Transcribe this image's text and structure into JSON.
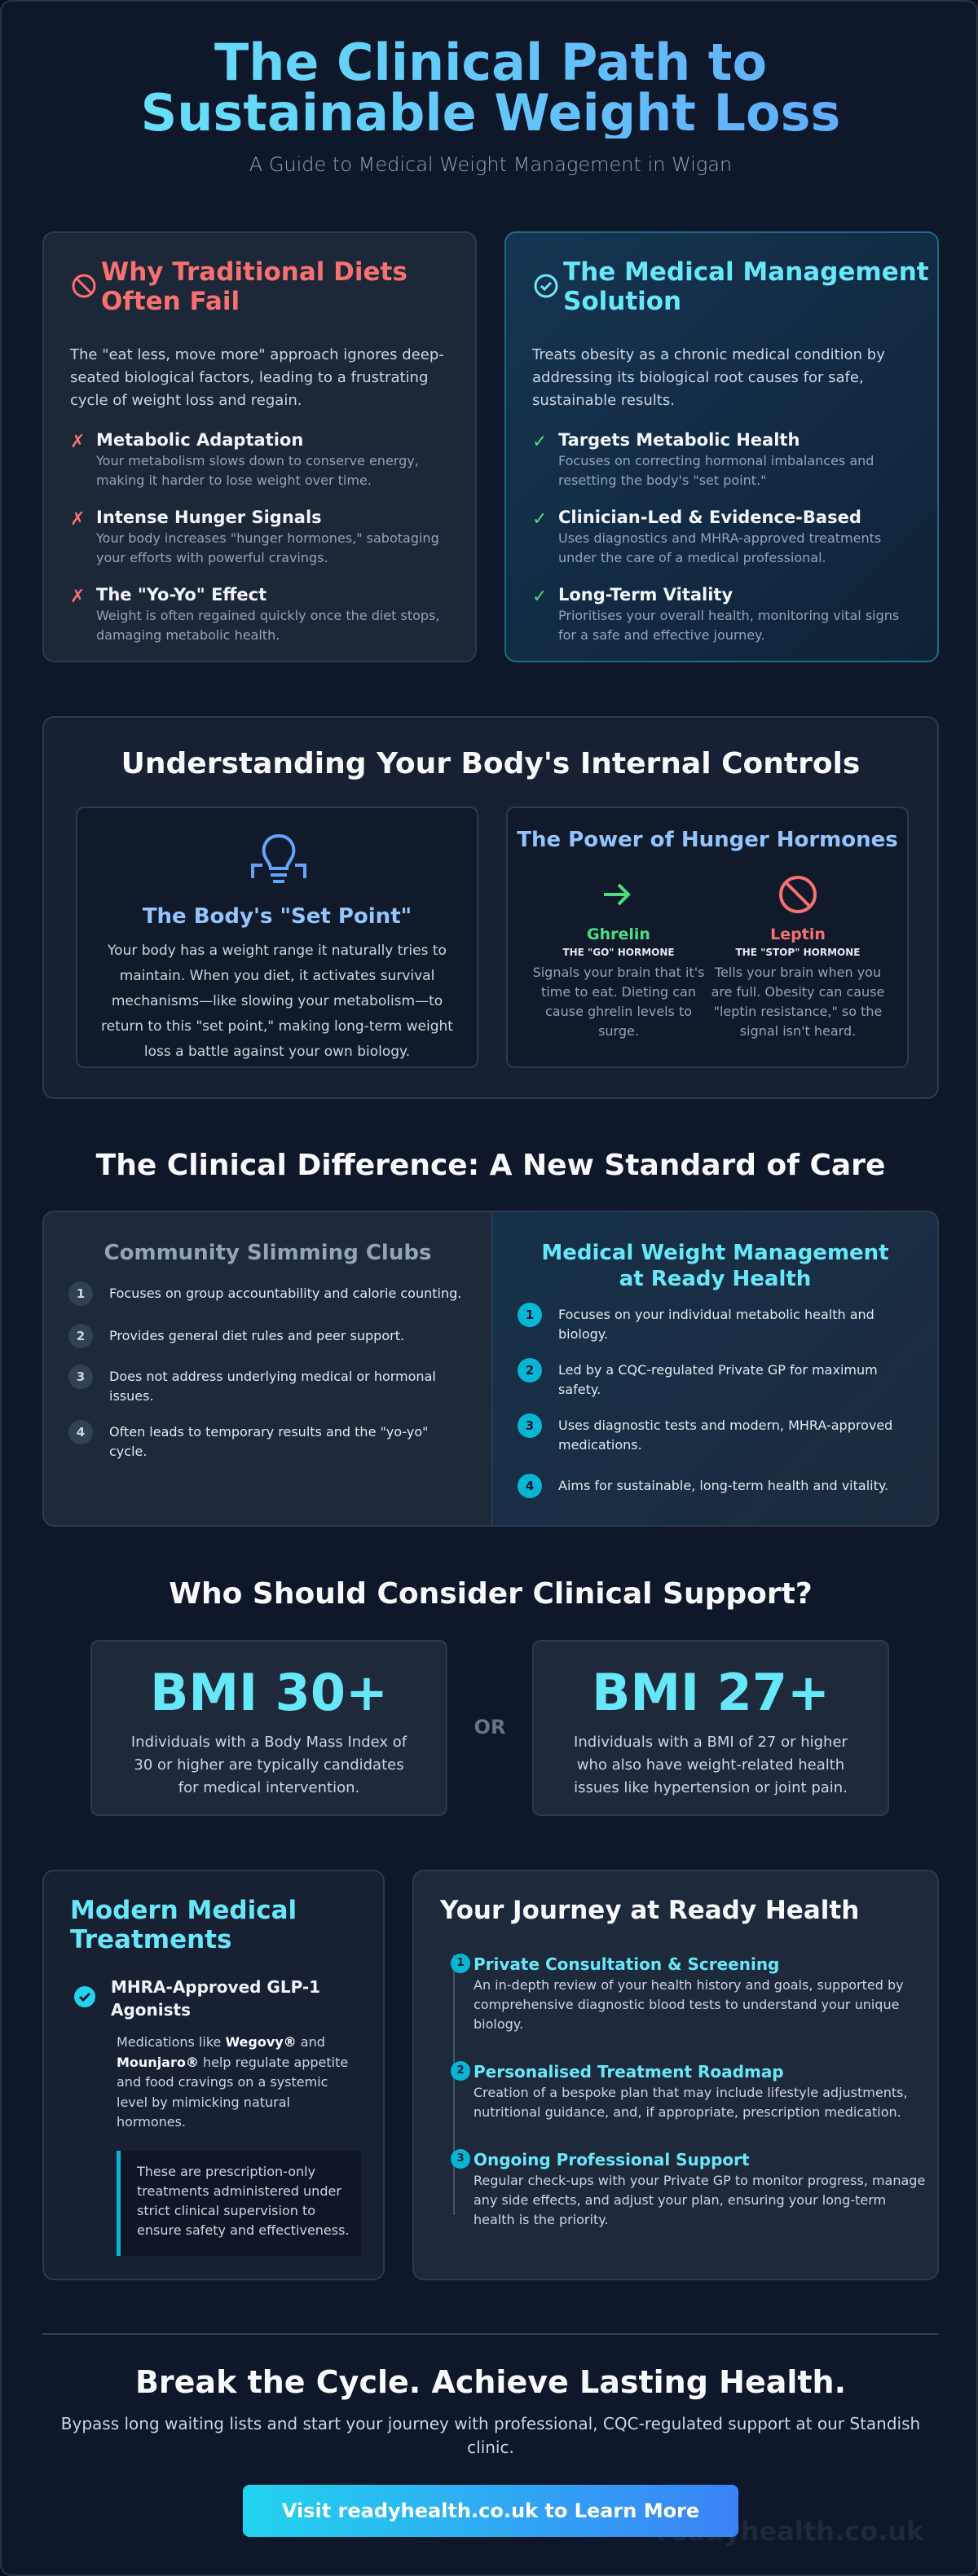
{
  "header": {
    "title": "The Clinical Path to Sustainable Weight Loss",
    "subtitle": "A Guide to Medical Weight Management in Wigan"
  },
  "problem": {
    "title": "Why Traditional Diets Often Fail",
    "intro": "The \"eat less, move more\" approach ignores deep-seated biological factors, leading to a frustrating cycle of weight loss and regain.",
    "items": [
      {
        "title": "Metabolic Adaptation",
        "text": "Your metabolism slows down to conserve energy, making it harder to lose weight over time."
      },
      {
        "title": "Intense Hunger Signals",
        "text": "Your body increases \"hunger hormones,\" sabotaging your efforts with powerful cravings."
      },
      {
        "title": "The \"Yo-Yo\" Effect",
        "text": "Weight is often regained quickly once the diet stops, damaging metabolic health."
      }
    ]
  },
  "solution": {
    "title": "The Medical Management Solution",
    "intro": "Treats obesity as a chronic medical condition by addressing its biological root causes for safe, sustainable results.",
    "items": [
      {
        "title": "Targets Metabolic Health",
        "text": "Focuses on correcting hormonal imbalances and resetting the body's \"set point.\""
      },
      {
        "title": "Clinician-Led & Evidence-Based",
        "text": "Uses diagnostics and MHRA-approved treatments under the care of a medical professional."
      },
      {
        "title": "Long-Term Vitality",
        "text": "Prioritises your overall health, monitoring vital signs for a safe and effective journey."
      }
    ]
  },
  "controls": {
    "title": "Understanding Your Body's Internal Controls",
    "set_point": {
      "title": "The Body's \"Set Point\"",
      "text": "Your body has a weight range it naturally tries to maintain. When you diet, it activates survival mechanisms—like slowing your metabolism—to return to this \"set point,\" making long-term weight loss a battle against your own biology."
    },
    "hormones": {
      "title": "The Power of Hunger Hormones",
      "items": [
        {
          "name": "Ghrelin",
          "role": "THE \"GO\" HORMONE",
          "text": "Signals your brain that it's time to eat. Dieting can cause ghrelin levels to surge."
        },
        {
          "name": "Leptin",
          "role": "THE \"STOP\" HORMONE",
          "text": "Tells your brain when you are full. Obesity can cause \"leptin resistance,\" so the signal isn't heard."
        }
      ]
    }
  },
  "comparison": {
    "title": "The Clinical Difference: A New Standard of Care",
    "columns": [
      {
        "title": "Community Slimming Clubs",
        "items": [
          {
            "number": 1,
            "text": "Focuses on group accountability and calorie counting."
          },
          {
            "number": 2,
            "text": "Provides general diet rules and peer support."
          },
          {
            "number": 3,
            "text": "Does not address underlying medical or hormonal issues."
          },
          {
            "number": 4,
            "text": "Often leads to temporary results and the \"yo-yo\" cycle."
          }
        ]
      },
      {
        "title": "Medical Weight Management at Ready Health",
        "items": [
          {
            "number": 1,
            "text": "Focuses on your individual metabolic health and biology."
          },
          {
            "number": 2,
            "text": "Led by a CQC-regulated Private GP for maximum safety."
          },
          {
            "number": 3,
            "text": "Uses diagnostic tests and modern, MHRA-approved medications."
          },
          {
            "number": 4,
            "text": "Aims for sustainable, long-term health and vitality."
          }
        ]
      }
    ]
  },
  "eligibility": {
    "title": "Who Should Consider Clinical Support?",
    "separator": "OR",
    "options": [
      {
        "label": "BMI 30+",
        "text": "Individuals with a Body Mass Index of 30 or higher are typically candidates for medical intervention."
      },
      {
        "label": "BMI 27+",
        "text": "Individuals with a BMI of 27 or higher who also have weight-related health issues like hypertension or joint pain."
      }
    ]
  },
  "treatments": {
    "title": "Modern Medical Treatments",
    "item_title": "MHRA-Approved GLP-1 Agonists",
    "description": [
      {
        "text": "Medications like "
      },
      {
        "text": "Wegovy®",
        "bold": true
      },
      {
        "text": " and "
      },
      {
        "text": "Mounjaro®",
        "bold": true
      },
      {
        "text": " help regulate appetite and food cravings on a systemic level by mimicking natural hormones."
      }
    ],
    "note": "These are prescription-only treatments administered under strict clinical supervision to ensure safety and effectiveness."
  },
  "journey": {
    "title": "Your Journey at Ready Health",
    "steps": [
      {
        "number": 1,
        "title": "Private Consultation & Screening",
        "text": "An in-depth review of your health history and goals, supported by comprehensive diagnostic blood tests to understand your unique biology."
      },
      {
        "number": 2,
        "title": "Personalised Treatment Roadmap",
        "text": "Creation of a bespoke plan that may include lifestyle adjustments, nutritional guidance, and, if appropriate, prescription medication."
      },
      {
        "number": 3,
        "title": "Ongoing Professional Support",
        "text": "Regular check-ups with your Private GP to monitor progress, manage any side effects, and adjust your plan, ensuring your long-term health is the priority."
      }
    ]
  },
  "cta": {
    "title": "Break the Cycle. Achieve Lasting Health.",
    "text": "Bypass long waiting lists and start your journey with professional, CQC-regulated support at our Standish clinic.",
    "button": "Visit readyhealth.co.uk to Learn More",
    "watermark": "readyhealth.co.uk"
  }
}
